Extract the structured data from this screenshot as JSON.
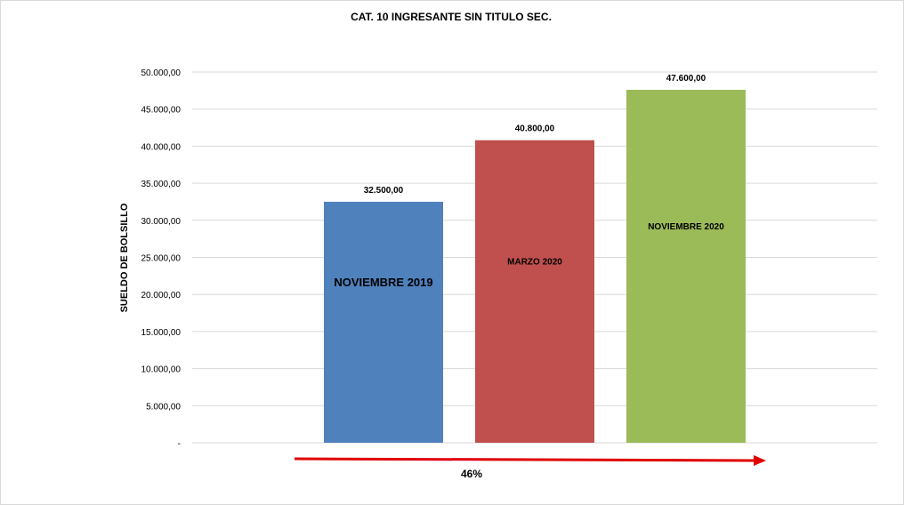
{
  "chart_data": {
    "type": "bar",
    "title": "CAT. 10 INGRESANTE SIN TITULO SEC.",
    "xlabel": "",
    "ylabel": "SUELDO DE BOLSILLO",
    "ylim": [
      0,
      50000
    ],
    "y_ticks": [
      {
        "value": 0,
        "label": "-"
      },
      {
        "value": 5000,
        "label": "5.000,00"
      },
      {
        "value": 10000,
        "label": "10.000,00"
      },
      {
        "value": 15000,
        "label": "15.000,00"
      },
      {
        "value": 20000,
        "label": "20.000,00"
      },
      {
        "value": 25000,
        "label": "25.000,00"
      },
      {
        "value": 30000,
        "label": "30.000,00"
      },
      {
        "value": 35000,
        "label": "35.000,00"
      },
      {
        "value": 40000,
        "label": "40.000,00"
      },
      {
        "value": 45000,
        "label": "45.000,00"
      },
      {
        "value": 50000,
        "label": "50.000,00"
      }
    ],
    "categories": [
      "NOVIEMBRE 2019",
      "MARZO 2020",
      "NOVIEMBRE 2020"
    ],
    "values": [
      32500,
      40800,
      47600
    ],
    "value_labels": [
      "32.500,00",
      "40.800,00",
      "47.600,00"
    ],
    "colors": [
      "#4f81bd",
      "#c0504d",
      "#9bbb59"
    ],
    "grid": true,
    "legend": "none",
    "annotation": {
      "text": "46%",
      "arrow_color": "#e00000",
      "direction": "right"
    }
  }
}
